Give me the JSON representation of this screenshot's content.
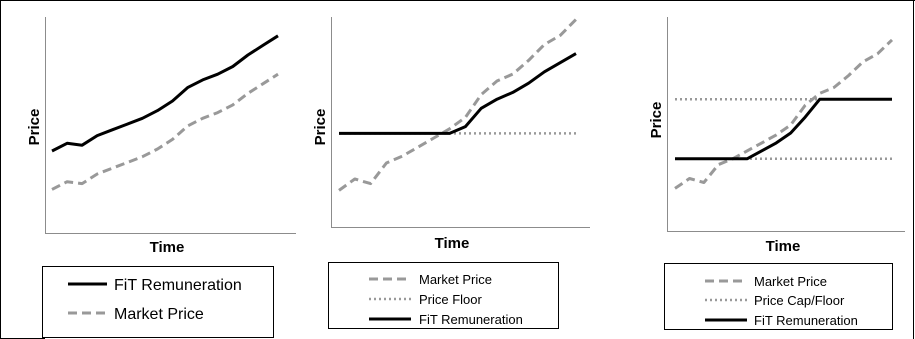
{
  "colors": {
    "fit": "#000000",
    "market": "#999999",
    "floor": "#999999",
    "cap": "#999999"
  },
  "chart_data": [
    {
      "type": "line",
      "xlabel": "Time",
      "ylabel": "Price",
      "ylim": [
        0,
        100
      ],
      "grid": false,
      "legend": "below",
      "series": [
        {
          "name": "FiT Remuneration",
          "style": "solid",
          "color": "#000000",
          "values": [
            37,
            41,
            40,
            45,
            48,
            51,
            54,
            58,
            63,
            70,
            74,
            77,
            81,
            87,
            92,
            97
          ]
        },
        {
          "name": "Market Price",
          "style": "dashed",
          "color": "#999999",
          "values": [
            17,
            21,
            20,
            25,
            28,
            31,
            34,
            38,
            43,
            50,
            54,
            57,
            61,
            67,
            72,
            77
          ]
        }
      ]
    },
    {
      "type": "line",
      "xlabel": "Time",
      "ylabel": "Price",
      "ylim": [
        0,
        100
      ],
      "grid": false,
      "legend": "below",
      "series": [
        {
          "name": "Market Price",
          "style": "dashed",
          "color": "#999999",
          "values": [
            20,
            25,
            23,
            32,
            35,
            39,
            43,
            47,
            52,
            62,
            68,
            71,
            77,
            84,
            88,
            95
          ]
        },
        {
          "name": "Price Floor",
          "style": "dotted",
          "color": "#999999",
          "values": [
            45,
            45,
            45,
            45,
            45,
            45,
            45,
            45,
            45,
            45,
            45,
            45,
            45,
            45,
            45,
            45
          ]
        },
        {
          "name": "FiT Remuneration",
          "style": "solid",
          "color": "#000000",
          "values": [
            45,
            45,
            45,
            45,
            45,
            45,
            45,
            45,
            48,
            56,
            60,
            63,
            67,
            72,
            76,
            80
          ]
        }
      ]
    },
    {
      "type": "line",
      "xlabel": "Time",
      "ylabel": "Price",
      "ylim": [
        0,
        100
      ],
      "grid": false,
      "legend": "below",
      "series": [
        {
          "name": "Market Price",
          "style": "dashed",
          "color": "#999999",
          "values": [
            20,
            25,
            23,
            32,
            35,
            39,
            43,
            47,
            52,
            62,
            68,
            71,
            77,
            84,
            88,
            95
          ]
        },
        {
          "name": "Price Cap/Floor",
          "style": "dotted",
          "color": "#999999",
          "values": [
            [
              35,
              35,
              35,
              35,
              35,
              35,
              35,
              35,
              35,
              35,
              35,
              35,
              35,
              35,
              35,
              35
            ],
            [
              65,
              65,
              65,
              65,
              65,
              65,
              65,
              65,
              65,
              65,
              65,
              65,
              65,
              65,
              65,
              65
            ]
          ]
        },
        {
          "name": "FiT Remuneration",
          "style": "solid",
          "color": "#000000",
          "values": [
            35,
            35,
            35,
            35,
            35,
            35,
            39,
            43,
            48,
            56,
            65,
            65,
            65,
            65,
            65,
            65
          ]
        }
      ]
    }
  ]
}
